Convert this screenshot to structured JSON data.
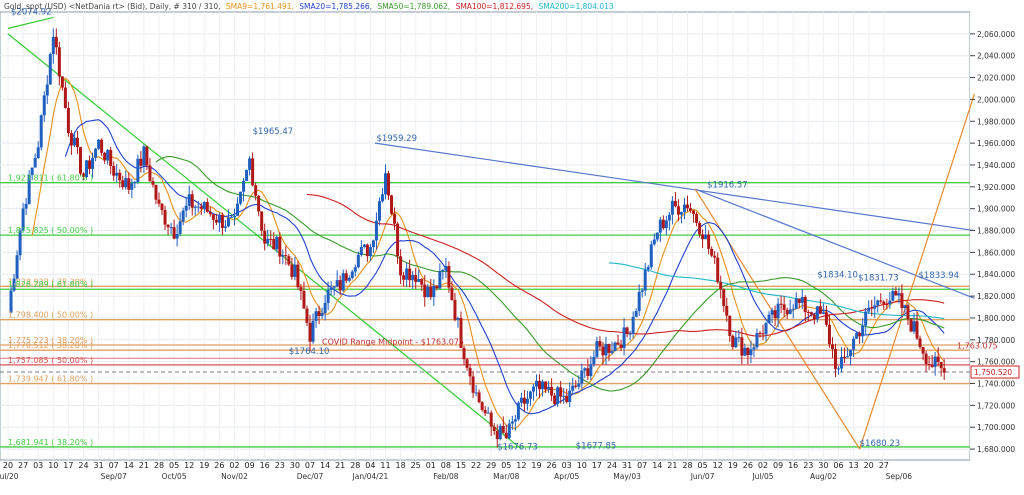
{
  "header": {
    "symbol": "Gold, spot (USD) <NetDania rt> (Bid), Daily, # 310 / 310,",
    "sma9": "SMA9=1,761.491,",
    "sma20": "SMA20=1,785.266,",
    "sma50": "SMA50=1,789.062,",
    "sma100": "SMA100=1,812.695,",
    "sma200": "SMA200=1,804.013"
  },
  "colors": {
    "up": "#1f5fbf",
    "down": "#b01818",
    "sma9": "#e8901a",
    "sma20": "#2040d0",
    "sma50": "#3a9a2a",
    "sma100": "#cc2020",
    "sma200": "#20b8c8",
    "fib_green": "#44cc44",
    "fib_orange": "#e0a060",
    "trend_green": "#33cc33",
    "trend_blue": "#5577cc",
    "trend_orange": "#e88a30",
    "annotation": "#3366aa",
    "midpoint": "#c03030"
  },
  "chart_data": {
    "type": "candlestick",
    "timeframe": "Daily",
    "y_axis": {
      "min": 1670,
      "max": 2080,
      "ticks": [
        1680,
        1700,
        1720,
        1740,
        1760,
        1780,
        1800,
        1820,
        1840,
        1860,
        1880,
        1900,
        1920,
        1940,
        1960,
        1980,
        2000,
        2020,
        2040,
        2060
      ],
      "tick_labels": [
        "1,680.000",
        "1,700.000",
        "1,720.000",
        "1,740.000",
        "1,760.000",
        "1,780.000",
        "1,800.000",
        "1,820.000",
        "1,840.000",
        "1,860.000",
        "1,880.000",
        "1,900.000",
        "1,920.000",
        "1,940.000",
        "1,960.000",
        "1,980.000",
        "2,000.000",
        "2,020.000",
        "2,040.000",
        "2,060.000"
      ]
    },
    "x_axis": {
      "day_labels": [
        "20",
        "27",
        "03",
        "10",
        "17",
        "24",
        "31",
        "07",
        "14",
        "21",
        "28",
        "05",
        "12",
        "19",
        "26",
        "02",
        "09",
        "16",
        "23",
        "30",
        "07",
        "14",
        "21",
        "28",
        "04",
        "11",
        "18",
        "25",
        "01",
        "08",
        "15",
        "22",
        "29",
        "05",
        "12",
        "19",
        "26",
        "03",
        "10",
        "17",
        "24",
        "31",
        "07",
        "14",
        "21",
        "28",
        "05",
        "12",
        "19",
        "26",
        "02",
        "09",
        "16",
        "23",
        "30",
        "06",
        "13",
        "20",
        "27"
      ],
      "month_labels": [
        {
          "text": "Jul/20",
          "index": 0
        },
        {
          "text": "Sep/07",
          "index": 7
        },
        {
          "text": "Oct/05",
          "index": 11
        },
        {
          "text": "Nov/02",
          "index": 15
        },
        {
          "text": "Dec/07",
          "index": 20
        },
        {
          "text": "Jan/04/21",
          "index": 24
        },
        {
          "text": "Feb/08",
          "index": 29
        },
        {
          "text": "Mar/08",
          "index": 33
        },
        {
          "text": "Apr/05",
          "index": 37
        },
        {
          "text": "May/03",
          "index": 41
        },
        {
          "text": "Jun/07",
          "index": 46
        },
        {
          "text": "Jul/05",
          "index": 50
        },
        {
          "text": "Aug/02",
          "index": 54
        },
        {
          "text": "Sep/06",
          "index": 59
        }
      ]
    },
    "price_path": [
      [
        0,
        1805
      ],
      [
        1,
        1900
      ],
      [
        2,
        1960
      ],
      [
        3,
        2062
      ],
      [
        4,
        1975
      ],
      [
        5,
        1930
      ],
      [
        6,
        1960
      ],
      [
        7,
        1935
      ],
      [
        8,
        1920
      ],
      [
        9,
        1950
      ],
      [
        10,
        1900
      ],
      [
        11,
        1880
      ],
      [
        12,
        1905
      ],
      [
        13,
        1900
      ],
      [
        14,
        1890
      ],
      [
        15,
        1885
      ],
      [
        16,
        1945
      ],
      [
        17,
        1870
      ],
      [
        18,
        1865
      ],
      [
        19,
        1840
      ],
      [
        20,
        1785
      ],
      [
        21,
        1820
      ],
      [
        22,
        1830
      ],
      [
        23,
        1855
      ],
      [
        24,
        1865
      ],
      [
        25,
        1935
      ],
      [
        26,
        1845
      ],
      [
        27,
        1840
      ],
      [
        28,
        1820
      ],
      [
        29,
        1845
      ],
      [
        30,
        1780
      ],
      [
        31,
        1730
      ],
      [
        32,
        1700
      ],
      [
        33,
        1690
      ],
      [
        34,
        1720
      ],
      [
        35,
        1735
      ],
      [
        36,
        1730
      ],
      [
        37,
        1725
      ],
      [
        38,
        1745
      ],
      [
        39,
        1770
      ],
      [
        40,
        1775
      ],
      [
        41,
        1785
      ],
      [
        42,
        1830
      ],
      [
        43,
        1880
      ],
      [
        44,
        1900
      ],
      [
        45,
        1905
      ],
      [
        46,
        1880
      ],
      [
        47,
        1840
      ],
      [
        48,
        1780
      ],
      [
        49,
        1770
      ],
      [
        50,
        1790
      ],
      [
        51,
        1805
      ],
      [
        52,
        1815
      ],
      [
        53,
        1808
      ],
      [
        54,
        1800
      ],
      [
        55,
        1750
      ],
      [
        56,
        1780
      ],
      [
        57,
        1805
      ],
      [
        58,
        1820
      ],
      [
        59,
        1815
      ],
      [
        60,
        1790
      ],
      [
        61,
        1760
      ],
      [
        62,
        1750
      ]
    ],
    "last_price": "1,750.520",
    "annotations": [
      {
        "text": "$2074.92",
        "x": 0.2,
        "y": 2074.92
      },
      {
        "text": "$1965.47",
        "x": 16.2,
        "y": 1965.47
      },
      {
        "text": "$1959.29",
        "x": 24.4,
        "y": 1959.29
      },
      {
        "text": "$1764.10",
        "x": 18.6,
        "y": 1764.1
      },
      {
        "text": "$1676.73",
        "x": 32.4,
        "y": 1676.73
      },
      {
        "text": "$1677.85",
        "x": 37.6,
        "y": 1677.85
      },
      {
        "text": "$1916.57",
        "x": 46.3,
        "y": 1916.57
      },
      {
        "text": "$1834.10",
        "x": 53.6,
        "y": 1834.1
      },
      {
        "text": "$1831.73",
        "x": 56.3,
        "y": 1831.73
      },
      {
        "text": "$1833.94",
        "x": 60.3,
        "y": 1833.94
      },
      {
        "text": "$1680.23",
        "x": 56.4,
        "y": 1680.23
      }
    ],
    "fib_levels": [
      {
        "price": 1923.811,
        "label": "1,923.811 ( 61.80% )",
        "color": "green"
      },
      {
        "price": 1875.825,
        "label": "1,875.825 ( 50.00% )",
        "color": "green"
      },
      {
        "price": 1828.938,
        "label": "1,828.938 ( 38.20% )",
        "color": "orange"
      },
      {
        "price": 1826.289,
        "label": "1,826.289 ( 61.80% )",
        "color": "green"
      },
      {
        "price": 1798.4,
        "label": "1,798.400 ( 50.00% )",
        "color": "orange"
      },
      {
        "price": 1775.223,
        "label": "1,775.223 ( 38.20% )",
        "color": "orange"
      },
      {
        "price": 1770.512,
        "label": "1,770.512 ( 38.20% )",
        "color": "orange"
      },
      {
        "price": 1757.085,
        "label": "1,757.085 ( 50.00% )",
        "color": "red"
      },
      {
        "price": 1739.947,
        "label": "1,739.947 ( 61.80% )",
        "color": "orange"
      },
      {
        "price": 1681.941,
        "label": "1,681.941 ( 38.20% )",
        "color": "green"
      }
    ],
    "covid_midpoint": {
      "price": 1763.075,
      "label": "COVID Range Midpoint - $1763.075"
    },
    "right_label": "1,763.075",
    "trendlines": [
      {
        "color": "green",
        "from": [
          0,
          2060
        ],
        "to": [
          34,
          1680
        ]
      },
      {
        "color": "green",
        "from": [
          0,
          2065
        ],
        "to": [
          3,
          2075
        ]
      },
      {
        "color": "blue",
        "from": [
          24.3,
          1960
        ],
        "to": [
          64,
          1880
        ]
      },
      {
        "color": "blue",
        "from": [
          45.5,
          1918
        ],
        "to": [
          64,
          1818
        ]
      },
      {
        "color": "orange",
        "from": [
          45.5,
          1918
        ],
        "to": [
          56.4,
          1680
        ]
      },
      {
        "color": "orange",
        "from": [
          56.4,
          1680
        ],
        "to": [
          64,
          2005
        ]
      }
    ]
  }
}
